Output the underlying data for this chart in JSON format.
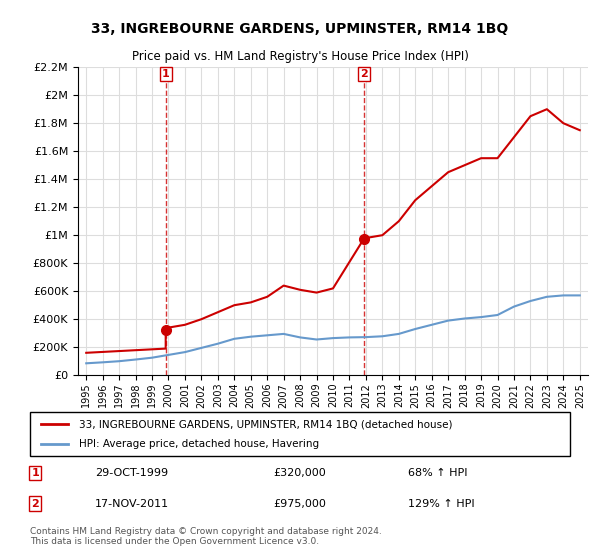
{
  "title": "33, INGREBOURNE GARDENS, UPMINSTER, RM14 1BQ",
  "subtitle": "Price paid vs. HM Land Registry's House Price Index (HPI)",
  "legend_line1": "33, INGREBOURNE GARDENS, UPMINSTER, RM14 1BQ (detached house)",
  "legend_line2": "HPI: Average price, detached house, Havering",
  "annotation1_label": "1",
  "annotation1_date": "29-OCT-1999",
  "annotation1_price": "£320,000",
  "annotation1_hpi": "68% ↑ HPI",
  "annotation2_label": "2",
  "annotation2_date": "17-NOV-2011",
  "annotation2_price": "£975,000",
  "annotation2_hpi": "129% ↑ HPI",
  "footnote": "Contains HM Land Registry data © Crown copyright and database right 2024.\nThis data is licensed under the Open Government Licence v3.0.",
  "red_color": "#cc0000",
  "blue_color": "#6699cc",
  "dashed_vline_color": "#cc0000",
  "background_color": "#ffffff",
  "grid_color": "#dddddd",
  "ylim_max": 2200000,
  "purchase1_year": 1999.83,
  "purchase1_price": 320000,
  "purchase2_year": 2011.88,
  "purchase2_price": 975000,
  "hpi_years": [
    1995,
    1996,
    1997,
    1998,
    1999,
    2000,
    2001,
    2002,
    2003,
    2004,
    2005,
    2006,
    2007,
    2008,
    2009,
    2010,
    2011,
    2012,
    2013,
    2014,
    2015,
    2016,
    2017,
    2018,
    2019,
    2020,
    2021,
    2022,
    2023,
    2024,
    2025
  ],
  "hpi_values": [
    85000,
    92000,
    100000,
    112000,
    125000,
    145000,
    165000,
    195000,
    225000,
    260000,
    275000,
    285000,
    295000,
    270000,
    255000,
    265000,
    270000,
    272000,
    278000,
    295000,
    330000,
    360000,
    390000,
    405000,
    415000,
    430000,
    490000,
    530000,
    560000,
    570000,
    570000
  ],
  "prop_segments": [
    {
      "years": [
        1995,
        1999.83
      ],
      "values": [
        160000,
        190000
      ]
    },
    {
      "years": [
        1999.83,
        2000,
        2001,
        2002,
        2003,
        2004,
        2005,
        2006,
        2007,
        2008,
        2009,
        2010,
        2011.88
      ],
      "values": [
        320000,
        340000,
        360000,
        400000,
        450000,
        500000,
        520000,
        560000,
        640000,
        610000,
        590000,
        620000,
        975000
      ]
    },
    {
      "years": [
        2011.88,
        2012,
        2013,
        2014,
        2015,
        2016,
        2017,
        2018,
        2019,
        2020,
        2021,
        2022,
        2023,
        2024,
        2025
      ],
      "values": [
        975000,
        980000,
        1000000,
        1100000,
        1250000,
        1350000,
        1450000,
        1500000,
        1550000,
        1550000,
        1700000,
        1850000,
        1900000,
        1800000,
        1750000
      ]
    }
  ]
}
